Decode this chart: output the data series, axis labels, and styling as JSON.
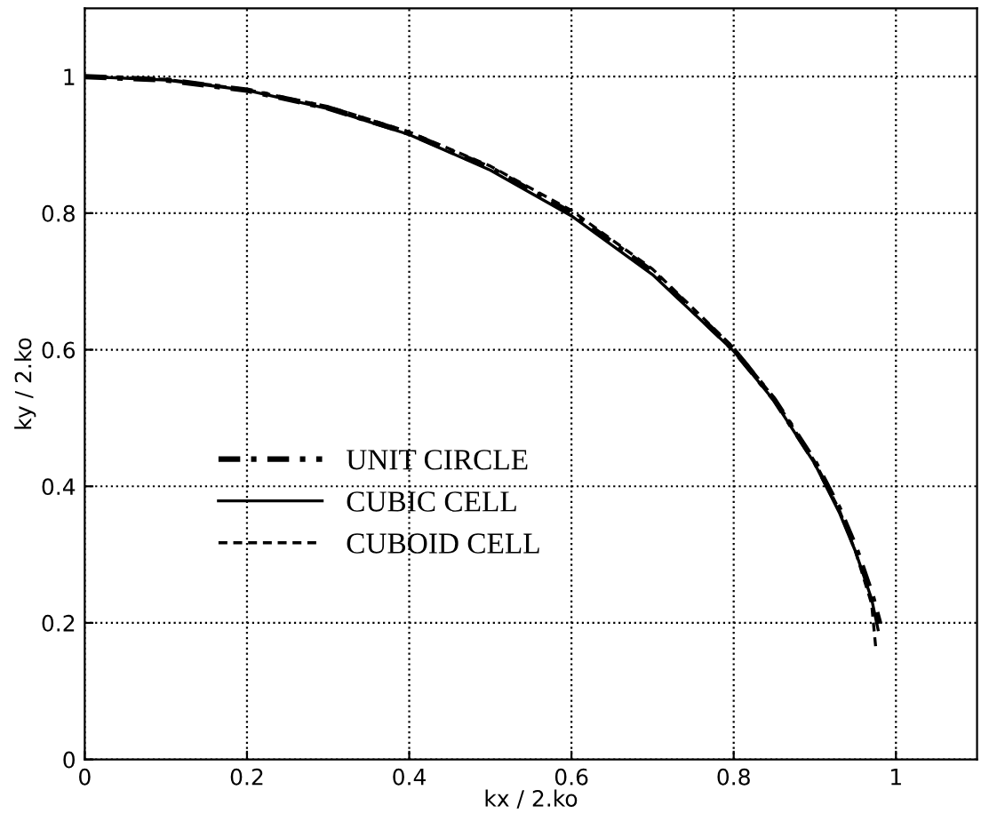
{
  "chart_data": {
    "type": "line",
    "xlabel": "kx / 2.ko",
    "ylabel": "ky / 2.ko",
    "xlim": [
      0,
      1.1
    ],
    "ylim": [
      0,
      1.1
    ],
    "xticks": [
      0,
      0.2,
      0.4,
      0.6,
      0.8,
      1
    ],
    "yticks": [
      0,
      0.2,
      0.4,
      0.6,
      0.8,
      1
    ],
    "grid": true,
    "legend": "left",
    "marker": "none",
    "series": [
      {
        "name": "UNIT CIRCLE",
        "color": "#000000",
        "line_style": "dashdot",
        "x": [
          0,
          0.1,
          0.2,
          0.3,
          0.4,
          0.5,
          0.6,
          0.7,
          0.8,
          0.85,
          0.9,
          0.93,
          0.95,
          0.97,
          0.98
        ],
        "values": [
          1,
          0.995,
          0.98,
          0.954,
          0.917,
          0.866,
          0.8,
          0.714,
          0.6,
          0.527,
          0.436,
          0.368,
          0.312,
          0.243,
          0.199
        ]
      },
      {
        "name": "CUBIC CELL",
        "color": "#000000",
        "line_style": "solid",
        "x": [
          0,
          0.1,
          0.2,
          0.3,
          0.4,
          0.5,
          0.6,
          0.7,
          0.8,
          0.85,
          0.9,
          0.93,
          0.95,
          0.97,
          0.978
        ],
        "values": [
          1,
          0.995,
          0.98,
          0.953,
          0.915,
          0.863,
          0.796,
          0.71,
          0.598,
          0.525,
          0.433,
          0.362,
          0.305,
          0.235,
          0.19
        ]
      },
      {
        "name": "CUBOID CELL",
        "color": "#000000",
        "line_style": "dashed",
        "x": [
          0,
          0.1,
          0.2,
          0.3,
          0.4,
          0.5,
          0.6,
          0.7,
          0.8,
          0.85,
          0.9,
          0.93,
          0.95,
          0.97,
          0.975
        ],
        "values": [
          1,
          0.996,
          0.981,
          0.956,
          0.919,
          0.869,
          0.804,
          0.718,
          0.603,
          0.529,
          0.436,
          0.366,
          0.305,
          0.228,
          0.165
        ]
      }
    ]
  }
}
